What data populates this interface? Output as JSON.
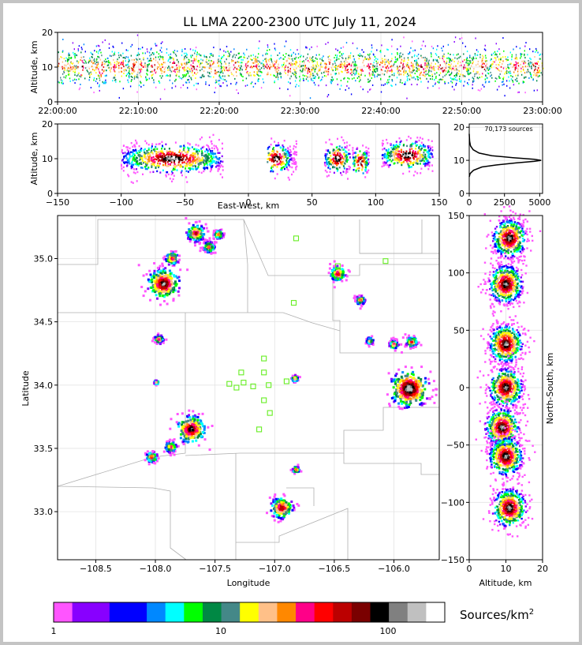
{
  "title": "LL LMA 2200-2300 UTC July 11, 2024",
  "time_panel": {
    "ylabel": "Altitude, km",
    "yticks": [
      "0",
      "10",
      "20"
    ],
    "xticks": [
      "22:00:00",
      "22:10:00",
      "22:20:00",
      "22:30:00",
      "22:40:00",
      "22:50:00",
      "23:00:00"
    ]
  },
  "ew_panel": {
    "ylabel": "Altitude, km",
    "xlabel": "East-West, km",
    "yticks": [
      "0",
      "10",
      "20"
    ],
    "xticks": [
      "−150",
      "−100",
      "−50",
      "0",
      "50",
      "100",
      "150"
    ]
  },
  "hist_panel": {
    "annotation": "70,173 sources",
    "yticks": [
      "0",
      "10",
      "20"
    ],
    "xticks": [
      "0",
      "2500",
      "5000"
    ]
  },
  "plan_panel": {
    "ylabel": "Latitude",
    "xlabel": "Longitude",
    "yticks": [
      "33.0",
      "33.5",
      "34.0",
      "34.5",
      "35.0"
    ],
    "xticks": [
      "−108.5",
      "−108.0",
      "−107.5",
      "−107.0",
      "−106.5",
      "−106.0"
    ]
  },
  "ns_panel": {
    "ylabel": "North-South, km",
    "xlabel": "Altitude, km",
    "yticks": [
      "−150",
      "−100",
      "−50",
      "0",
      "50",
      "100",
      "150"
    ],
    "xticks": [
      "0",
      "10",
      "20"
    ]
  },
  "colorbar": {
    "label": "Sources/km",
    "label_sup": "2",
    "ticks": [
      "1",
      "10",
      "100"
    ],
    "colors": [
      "#ff55ff",
      "#8800ff",
      "#8800ff",
      "#0000ff",
      "#0000ff",
      "#0088ff",
      "#00ffff",
      "#00ff00",
      "#008844",
      "#448888",
      "#ffff00",
      "#ffc088",
      "#ff8800",
      "#ff0088",
      "#ff0000",
      "#bb0000",
      "#7a0000",
      "#000000",
      "#808080",
      "#c0c0c0",
      "#ffffff"
    ]
  },
  "chart_data": [
    {
      "type": "heatmap",
      "name": "time-altitude",
      "title": "LL LMA 2200-2300 UTC July 11, 2024",
      "xlabel": "",
      "ylabel": "Altitude, km",
      "xlim": [
        "22:00:00",
        "23:00:00"
      ],
      "ylim": [
        0,
        20
      ],
      "altitude_core_km": [
        8,
        12
      ]
    },
    {
      "type": "heatmap",
      "name": "east-west-altitude",
      "xlabel": "East-West, km",
      "ylabel": "Altitude, km",
      "xlim": [
        -150,
        150
      ],
      "ylim": [
        0,
        20
      ],
      "clusters": [
        {
          "x": [
            -100,
            -20
          ],
          "center": -60,
          "alt": 10
        },
        {
          "x": [
            15,
            38
          ],
          "center": 22,
          "alt": 10
        },
        {
          "x": [
            60,
            80
          ],
          "center": 70,
          "alt": 10
        },
        {
          "x": [
            82,
            95
          ],
          "center": 88,
          "alt": 9
        },
        {
          "x": [
            105,
            145
          ],
          "center": 125,
          "alt": 11
        }
      ]
    },
    {
      "type": "line",
      "name": "altitude-histogram",
      "annotation": "70,173 sources",
      "xlim": [
        0,
        5200
      ],
      "ylim": [
        0,
        21
      ],
      "x": [
        0,
        60,
        300,
        900,
        1900,
        3300,
        4600,
        5100,
        4600,
        3100,
        1600,
        700,
        280,
        90,
        30,
        0
      ],
      "y": [
        5,
        6,
        7,
        8,
        8.6,
        9.2,
        9.7,
        10,
        10.3,
        10.8,
        11.4,
        12.2,
        13.2,
        14.4,
        15.8,
        18
      ]
    },
    {
      "type": "heatmap",
      "name": "plan-view",
      "xlabel": "Longitude",
      "ylabel": "Latitude",
      "xlim": [
        -108.82,
        -105.62
      ],
      "ylim": [
        32.62,
        35.34
      ],
      "clusters": [
        {
          "lon": -107.66,
          "lat": 35.2,
          "r": 0.08
        },
        {
          "lon": -107.47,
          "lat": 35.19,
          "r": 0.04
        },
        {
          "lon": -107.55,
          "lat": 35.09,
          "r": 0.05
        },
        {
          "lon": -107.86,
          "lat": 35.0,
          "r": 0.06
        },
        {
          "lon": -107.93,
          "lat": 34.8,
          "r": 0.14
        },
        {
          "lon": -106.47,
          "lat": 34.88,
          "r": 0.07
        },
        {
          "lon": -106.28,
          "lat": 34.67,
          "r": 0.04
        },
        {
          "lon": -107.97,
          "lat": 34.36,
          "r": 0.04
        },
        {
          "lon": -106.2,
          "lat": 34.35,
          "r": 0.03
        },
        {
          "lon": -106.0,
          "lat": 34.32,
          "r": 0.04
        },
        {
          "lon": -105.85,
          "lat": 34.34,
          "r": 0.05
        },
        {
          "lon": -105.87,
          "lat": 33.97,
          "r": 0.17
        },
        {
          "lon": -107.99,
          "lat": 34.02,
          "r": 0.02
        },
        {
          "lon": -106.83,
          "lat": 34.05,
          "r": 0.03
        },
        {
          "lon": -107.7,
          "lat": 33.65,
          "r": 0.13
        },
        {
          "lon": -107.87,
          "lat": 33.51,
          "r": 0.05
        },
        {
          "lon": -108.03,
          "lat": 33.43,
          "r": 0.05
        },
        {
          "lon": -106.82,
          "lat": 33.33,
          "r": 0.03
        },
        {
          "lon": -106.94,
          "lat": 33.03,
          "r": 0.1
        }
      ],
      "stations": [
        {
          "lon": -106.82,
          "lat": 35.16
        },
        {
          "lon": -106.07,
          "lat": 34.98
        },
        {
          "lon": -106.47,
          "lat": 34.94
        },
        {
          "lon": -106.84,
          "lat": 34.65
        },
        {
          "lon": -107.09,
          "lat": 34.21
        },
        {
          "lon": -107.28,
          "lat": 34.1
        },
        {
          "lon": -107.09,
          "lat": 34.1
        },
        {
          "lon": -107.38,
          "lat": 34.01
        },
        {
          "lon": -107.26,
          "lat": 34.02
        },
        {
          "lon": -107.32,
          "lat": 33.98
        },
        {
          "lon": -107.18,
          "lat": 33.99
        },
        {
          "lon": -107.05,
          "lat": 34.0
        },
        {
          "lon": -106.9,
          "lat": 34.03
        },
        {
          "lon": -107.09,
          "lat": 33.88
        },
        {
          "lon": -107.04,
          "lat": 33.78
        },
        {
          "lon": -107.13,
          "lat": 33.65
        }
      ]
    },
    {
      "type": "heatmap",
      "name": "north-south-altitude",
      "xlabel": "Altitude, km",
      "ylabel": "North-South, km",
      "xlim": [
        0,
        20
      ],
      "ylim": [
        -150,
        150
      ],
      "clusters": [
        {
          "ns": 130,
          "alt": 11
        },
        {
          "ns": 90,
          "alt": 10
        },
        {
          "ns": 38,
          "alt": 10
        },
        {
          "ns": 0,
          "alt": 10
        },
        {
          "ns": -35,
          "alt": 9
        },
        {
          "ns": -60,
          "alt": 10
        },
        {
          "ns": -105,
          "alt": 11
        }
      ]
    }
  ]
}
